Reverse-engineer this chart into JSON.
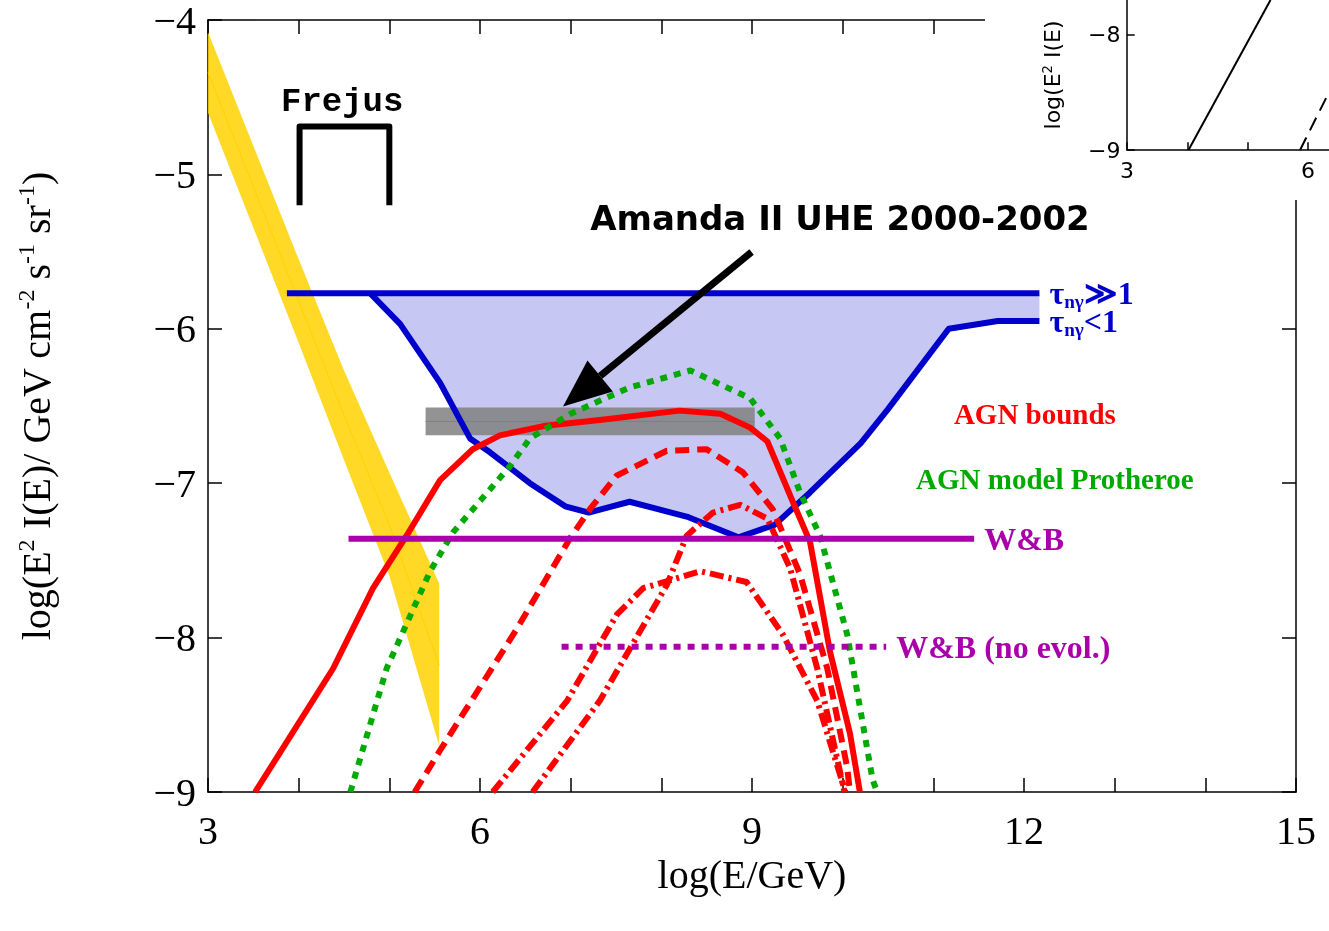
{
  "chart_data": [
    {
      "type": "line",
      "xlabel": "log(E/GeV)",
      "ylabel": "log(E$^{2}$ I(E)/ GeV cm$^{-2}$ s$^{-1}$ sr$^{-1}$)",
      "marker": "none",
      "xlim": [
        3,
        15
      ],
      "xticks": [
        3,
        {
          "value": 4,
          "label": null
        },
        {
          "value": 5,
          "label": null
        },
        6,
        {
          "value": 7,
          "label": null
        },
        {
          "value": 8,
          "label": null
        },
        9,
        {
          "value": 10,
          "label": null
        },
        {
          "value": 11,
          "label": null
        },
        12,
        {
          "value": 13,
          "label": null
        },
        {
          "value": 14,
          "label": null
        },
        15
      ],
      "ylim": [
        -9,
        -4
      ],
      "yticks": [
        -9,
        -8,
        -7,
        -6,
        -5,
        -4
      ],
      "annotations": [
        "Frejus",
        "Amanda II UHE 2000-2002"
      ],
      "series": [
        {
          "color": "#ffd200",
          "line_style": "solid",
          "x": [
            3,
            4.0,
            4.5,
            5.0,
            5.55
          ],
          "values": [
            -4.34,
            -5.82,
            -6.56,
            -7.27,
            -8.18
          ],
          "lower": [
            -4.6,
            -6.09,
            -6.85,
            -7.6,
            -8.7
          ],
          "upper": [
            -4.08,
            -5.55,
            -6.27,
            -6.93,
            -7.65
          ]
        },
        {
          "color": "#000000",
          "line_style": "solid",
          "x": [
            4.01,
            4.01,
            5.0,
            5.0
          ],
          "values": [
            -5.2,
            -4.69,
            -4.69,
            -5.2
          ]
        },
        {
          "name": "τ$_{nγ}$≫1",
          "color": "#0000cc",
          "line_style": "solid",
          "x": [
            3.87,
            12.17
          ],
          "values": [
            -5.77,
            -5.77
          ]
        },
        {
          "name": "τ$_{nγ}$<1",
          "color": "#0000cc",
          "line_style": "solid",
          "x": [
            4.79,
            5.12,
            5.56,
            5.89,
            6.11,
            6.55,
            6.94,
            7.2,
            7.65,
            8.3,
            8.85,
            9.25,
            9.64,
            10.2,
            10.5,
            11.17,
            11.71,
            12.17
          ],
          "values": [
            -5.77,
            -5.97,
            -6.35,
            -6.71,
            -6.8,
            -7.0,
            -7.15,
            -7.19,
            -7.12,
            -7.22,
            -7.35,
            -7.27,
            -7.06,
            -6.74,
            -6.52,
            -6.0,
            -5.95,
            -5.95
          ],
          "lower": [
            -5.77,
            -5.97,
            -6.35,
            -6.71,
            -6.8,
            -7.0,
            -7.15,
            -7.19,
            -7.12,
            -7.22,
            -7.35,
            -7.27,
            -7.06,
            -6.74,
            -6.52,
            -6.0,
            -5.95,
            -5.95
          ],
          "upper": [
            -5.77,
            -5.77,
            -5.77,
            -5.77,
            -5.77,
            -5.77,
            -5.77,
            -5.77,
            -5.77,
            -5.77,
            -5.77,
            -5.77,
            -5.77,
            -5.77,
            -5.77,
            -5.77,
            -5.77,
            -5.77
          ]
        },
        {
          "name": "AGN bounds",
          "color": "#ff0000",
          "line_style": "solid",
          "x": [
            3.52,
            4.38,
            4.82,
            5.19,
            5.56,
            5.92,
            6.22,
            6.7,
            7.32,
            8.2,
            8.65,
            8.98,
            9.17,
            9.45,
            9.64,
            9.86,
            10.08,
            10.19
          ],
          "values": [
            -9.0,
            -8.2,
            -7.68,
            -7.34,
            -6.98,
            -6.78,
            -6.69,
            -6.63,
            -6.59,
            -6.53,
            -6.55,
            -6.64,
            -6.73,
            -7.12,
            -7.38,
            -8.09,
            -8.62,
            -9.0
          ]
        },
        {
          "name": "AGN model Protheroe",
          "color": "#00aa00",
          "line_style": "dotted",
          "x": [
            4.57,
            4.97,
            5.45,
            5.7,
            6.33,
            6.55,
            7.0,
            7.65,
            8.32,
            8.98,
            9.31,
            9.53,
            9.75,
            10.05,
            10.33,
            10.38
          ],
          "values": [
            -9.0,
            -8.2,
            -7.57,
            -7.32,
            -6.89,
            -6.71,
            -6.55,
            -6.38,
            -6.27,
            -6.45,
            -6.71,
            -7.06,
            -7.34,
            -7.98,
            -8.92,
            -9.0
          ]
        },
        {
          "color": "#ff0000",
          "line_style": "dashed",
          "x": [
            5.28,
            5.56,
            6.41,
            6.99,
            7.21,
            7.51,
            8.06,
            8.5,
            8.9,
            9.23,
            9.53,
            9.83,
            10.05,
            10.08
          ],
          "values": [
            -9.0,
            -8.73,
            -7.94,
            -7.36,
            -7.17,
            -6.95,
            -6.79,
            -6.78,
            -6.93,
            -7.17,
            -7.59,
            -8.2,
            -8.84,
            -9.0
          ]
        },
        {
          "color": "#ff0000",
          "line_style": "dashdot",
          "x": [
            6.14,
            6.96,
            7.51,
            7.8,
            8.43,
            8.94,
            9.34,
            9.72,
            10.03
          ],
          "values": [
            -9.0,
            -8.41,
            -7.85,
            -7.68,
            -7.57,
            -7.64,
            -7.98,
            -8.41,
            -9.0
          ]
        },
        {
          "color": "#ff0000",
          "line_style": "dashdot",
          "x": [
            6.58,
            7.32,
            8.06,
            8.28,
            8.57,
            8.87,
            9.17,
            9.42,
            9.72,
            10.02
          ],
          "values": [
            -9.0,
            -8.41,
            -7.66,
            -7.34,
            -7.19,
            -7.14,
            -7.23,
            -7.55,
            -8.2,
            -9.0
          ]
        },
        {
          "name": "W&B",
          "color": "#aa00aa",
          "line_style": "solid",
          "x": [
            4.55,
            11.45
          ],
          "values": [
            -7.36,
            -7.36
          ]
        },
        {
          "name": "W&B (no evol.)",
          "color": "#aa00aa",
          "line_style": "dotted",
          "x": [
            6.9,
            10.48
          ],
          "values": [
            -8.06,
            -8.06
          ]
        },
        {
          "color": "#808080",
          "line_style": "solid",
          "x": [
            5.4,
            9.03
          ],
          "values": [
            -6.6,
            -6.6
          ],
          "lower": [
            -6.69,
            -6.69
          ],
          "upper": [
            -6.51,
            -6.51
          ]
        }
      ]
    },
    {
      "type": "line",
      "ylabel": "log(E$^{2}$ I(E)",
      "marker": "none",
      "xlim": [
        3,
        6.35
      ],
      "xticks": [
        3,
        {
          "value": 4,
          "label": null
        },
        {
          "value": 5,
          "label": null
        },
        6
      ],
      "ylim": [
        -9,
        -7.7
      ],
      "yticks": [
        -9,
        -8
      ],
      "series": [
        {
          "color": "#000000",
          "line_style": "solid",
          "x": [
            4.02,
            5.38
          ],
          "values": [
            -9,
            -7.7
          ]
        },
        {
          "color": "#000000",
          "line_style": "dashed",
          "x": [
            5.87,
            6.35
          ],
          "values": [
            -9,
            -8.5
          ]
        }
      ]
    }
  ]
}
